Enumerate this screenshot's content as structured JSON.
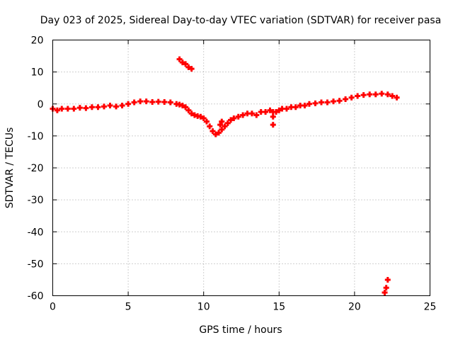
{
  "chart_data": {
    "type": "scatter",
    "title": "Day 023 of 2025, Sidereal Day-to-day VTEC variation (SDTVAR) for receiver pasa",
    "xlabel": "GPS time / hours",
    "ylabel": "SDTVAR / TECUs",
    "xlim": [
      0,
      25
    ],
    "ylim": [
      -60,
      20
    ],
    "xticks": [
      0,
      5,
      10,
      15,
      20,
      25
    ],
    "yticks": [
      20,
      10,
      0,
      -10,
      -20,
      -30,
      -40,
      -50,
      -60
    ],
    "grid": true,
    "series_color": "#ff0000",
    "series": [
      {
        "name": "SDTVAR",
        "marker": "plus",
        "x": [
          0.0,
          0.3,
          0.6,
          1.0,
          1.4,
          1.8,
          2.2,
          2.6,
          3.0,
          3.4,
          3.8,
          4.2,
          4.6,
          5.0,
          5.4,
          5.8,
          6.2,
          6.6,
          7.0,
          7.4,
          7.8,
          8.2,
          8.4,
          8.6,
          8.8,
          9.0,
          9.2,
          9.4,
          9.6,
          9.8,
          10.0,
          10.2,
          10.4,
          10.6,
          10.8,
          11.0,
          11.2,
          11.4,
          11.6,
          11.8,
          12.0,
          12.3,
          12.6,
          12.9,
          13.2,
          13.5,
          13.8,
          14.1,
          14.4,
          14.6,
          14.8,
          15.0,
          15.2,
          15.5,
          15.8,
          16.1,
          16.4,
          16.7,
          17.0,
          17.4,
          17.8,
          18.2,
          18.6,
          19.0,
          19.4,
          19.8,
          20.2,
          20.6,
          21.0,
          21.4,
          21.8,
          22.2,
          22.5,
          22.8,
          8.4,
          8.6,
          8.8,
          9.0,
          9.2,
          11.1,
          11.2,
          14.6,
          14.6,
          22.0,
          22.1,
          22.2
        ],
        "y": [
          -1.5,
          -2.0,
          -1.5,
          -1.5,
          -1.5,
          -1.2,
          -1.3,
          -1.0,
          -1.0,
          -0.8,
          -0.5,
          -0.8,
          -0.5,
          0.0,
          0.5,
          0.8,
          0.8,
          0.6,
          0.7,
          0.6,
          0.5,
          0.0,
          -0.2,
          -0.5,
          -1.0,
          -2.0,
          -3.0,
          -3.5,
          -3.8,
          -4.0,
          -4.5,
          -5.5,
          -7.0,
          -8.5,
          -9.5,
          -9.0,
          -8.0,
          -7.0,
          -6.0,
          -5.0,
          -4.5,
          -4.0,
          -3.5,
          -3.0,
          -3.0,
          -3.5,
          -2.5,
          -2.5,
          -2.0,
          -2.5,
          -2.5,
          -2.0,
          -1.5,
          -1.5,
          -1.0,
          -1.0,
          -0.5,
          -0.5,
          0.0,
          0.2,
          0.5,
          0.5,
          0.8,
          1.0,
          1.5,
          2.0,
          2.5,
          2.8,
          3.0,
          3.0,
          3.2,
          3.0,
          2.5,
          2.0,
          14.0,
          13.0,
          12.5,
          11.5,
          11.0,
          -6.5,
          -5.5,
          -6.5,
          -4.0,
          -59.0,
          -57.5,
          -55.0
        ]
      }
    ]
  }
}
